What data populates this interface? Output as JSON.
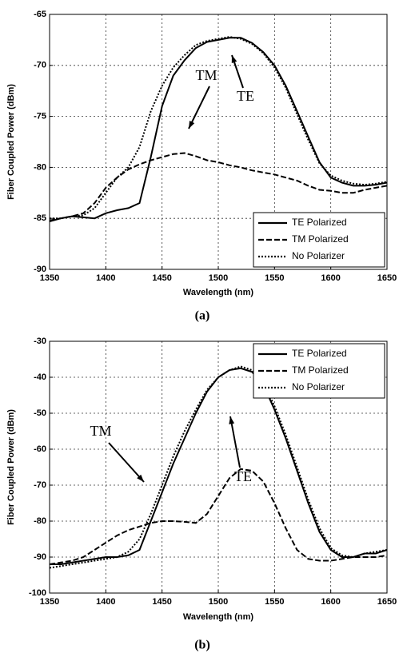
{
  "chart_data": [
    {
      "type": "line",
      "caption": "(a)",
      "xlabel": "Wavelength (nm)",
      "ylabel": "Fiber Coupled Power (dBm)",
      "xlim": [
        1350,
        1650
      ],
      "xticks": [
        1350,
        1400,
        1450,
        1500,
        1550,
        1600,
        1650
      ],
      "ylim": [
        -90,
        -65
      ],
      "yticks": [
        -90,
        -85,
        -80,
        -75,
        -70,
        -65
      ],
      "grid": true,
      "legend": "lower right",
      "annotations": [
        "TM",
        "TE"
      ],
      "x": [
        1350,
        1360,
        1370,
        1380,
        1390,
        1400,
        1410,
        1420,
        1430,
        1440,
        1450,
        1460,
        1470,
        1480,
        1490,
        1500,
        1510,
        1520,
        1530,
        1540,
        1550,
        1560,
        1570,
        1580,
        1590,
        1600,
        1610,
        1620,
        1630,
        1640,
        1650
      ],
      "series": [
        {
          "name": "TE Polarized",
          "color": "#000000",
          "dash": "solid",
          "values": [
            -85.3,
            -85,
            -84.8,
            -84.9,
            -85,
            -84.5,
            -84.2,
            -84,
            -83.5,
            -79,
            -74,
            -71,
            -69.5,
            -68.3,
            -67.7,
            -67.5,
            -67.3,
            -67.3,
            -67.8,
            -68.7,
            -70,
            -72,
            -74.5,
            -77,
            -79.5,
            -81,
            -81.5,
            -81.8,
            -81.8,
            -81.7,
            -81.5
          ]
        },
        {
          "name": "TM Polarized",
          "color": "#000000",
          "dash": "dashed",
          "values": [
            -85.2,
            -85,
            -84.8,
            -84.5,
            -83.5,
            -82,
            -81,
            -80.2,
            -79.7,
            -79.3,
            -79,
            -78.7,
            -78.6,
            -78.9,
            -79.3,
            -79.5,
            -79.8,
            -80,
            -80.3,
            -80.5,
            -80.7,
            -81,
            -81.3,
            -81.8,
            -82.2,
            -82.3,
            -82.5,
            -82.5,
            -82.2,
            -82,
            -81.8
          ]
        },
        {
          "name": "No Polarizer",
          "color": "#000000",
          "dash": "dotted",
          "values": [
            -85,
            -85,
            -84.8,
            -84.7,
            -84,
            -82.5,
            -81,
            -80,
            -78,
            -74.5,
            -72,
            -70.2,
            -69,
            -68,
            -67.6,
            -67.4,
            -67.2,
            -67.4,
            -67.9,
            -68.8,
            -70.2,
            -72.2,
            -74.8,
            -77.3,
            -79.6,
            -80.8,
            -81.3,
            -81.6,
            -81.7,
            -81.6,
            -81.4
          ]
        }
      ]
    },
    {
      "type": "line",
      "caption": "(b)",
      "xlabel": "Wavelength (nm)",
      "ylabel": "Fiber Coupled Power (dBm)",
      "xlim": [
        1350,
        1650
      ],
      "xticks": [
        1350,
        1400,
        1450,
        1500,
        1550,
        1600,
        1650
      ],
      "ylim": [
        -100,
        -30
      ],
      "yticks": [
        -100,
        -90,
        -80,
        -70,
        -60,
        -50,
        -40,
        -30
      ],
      "grid": true,
      "legend": "upper right",
      "annotations": [
        "TM",
        "TE"
      ],
      "x": [
        1350,
        1360,
        1370,
        1380,
        1390,
        1400,
        1410,
        1420,
        1430,
        1440,
        1450,
        1460,
        1470,
        1480,
        1490,
        1500,
        1510,
        1520,
        1530,
        1540,
        1550,
        1560,
        1570,
        1580,
        1590,
        1600,
        1610,
        1620,
        1630,
        1640,
        1650
      ],
      "series": [
        {
          "name": "TE Polarized",
          "color": "#000000",
          "dash": "solid",
          "values": [
            -92,
            -92,
            -91.5,
            -91,
            -90.5,
            -90,
            -90,
            -89.5,
            -88,
            -80,
            -72,
            -64,
            -57,
            -50,
            -44,
            -40,
            -38,
            -37.5,
            -38.5,
            -42,
            -49,
            -57,
            -66,
            -75,
            -83,
            -88,
            -90,
            -90,
            -89,
            -89,
            -88
          ]
        },
        {
          "name": "TM Polarized",
          "color": "#000000",
          "dash": "dashed",
          "values": [
            -92,
            -91.5,
            -91,
            -90,
            -88,
            -86,
            -84,
            -82.5,
            -81.5,
            -80.5,
            -80,
            -80,
            -80.2,
            -80.5,
            -78,
            -73,
            -68,
            -65.5,
            -66,
            -69,
            -75,
            -82,
            -88,
            -90.5,
            -91,
            -91,
            -90.5,
            -90,
            -90,
            -90,
            -89.5
          ]
        },
        {
          "name": "No Polarizer",
          "color": "#000000",
          "dash": "dotted",
          "values": [
            -93,
            -92.5,
            -92,
            -91.5,
            -91,
            -90.5,
            -90,
            -88.5,
            -85,
            -78,
            -70,
            -62,
            -55,
            -49,
            -43.5,
            -40,
            -38,
            -37,
            -38,
            -41.5,
            -48,
            -56,
            -65,
            -74,
            -82,
            -87.5,
            -89.5,
            -90,
            -89,
            -88.5,
            -88
          ]
        }
      ]
    }
  ]
}
